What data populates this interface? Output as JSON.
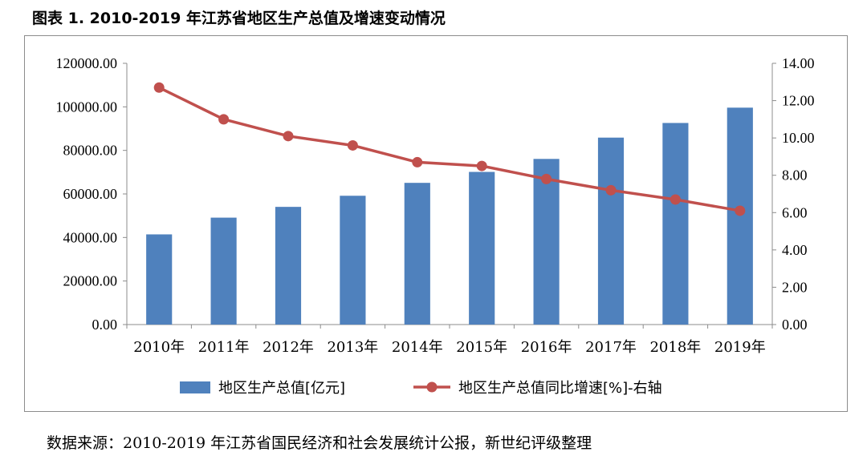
{
  "title": "图表 1. 2010-2019 年江苏省地区生产总值及增速变动情况",
  "source": "数据来源：2010-2019 年江苏省国民经济和社会发展统计公报，新世纪评级整理",
  "colors": {
    "bar": "#4f81bd",
    "line": "#c0504d",
    "axis": "#8c8c8c"
  },
  "chart_data": {
    "type": "bar",
    "categories": [
      "2010年",
      "2011年",
      "2012年",
      "2013年",
      "2014年",
      "2015年",
      "2016年",
      "2017年",
      "2018年",
      "2019年"
    ],
    "series": [
      {
        "name": "地区生产总值[亿元]",
        "type": "bar",
        "axis": "left",
        "values": [
          41425,
          49110,
          54058,
          59162,
          65088,
          70116,
          76086,
          85870,
          92595,
          99632
        ]
      },
      {
        "name": "地区生产总值同比增速[%]-右轴",
        "type": "line",
        "axis": "right",
        "values": [
          12.7,
          11.0,
          10.1,
          9.6,
          8.7,
          8.5,
          7.8,
          7.2,
          6.7,
          6.1
        ]
      }
    ],
    "y_left": {
      "range": [
        0,
        120000
      ],
      "ticks": [
        "0.00",
        "20000.00",
        "40000.00",
        "60000.00",
        "80000.00",
        "100000.00",
        "120000.00"
      ]
    },
    "y_right": {
      "range": [
        0,
        14
      ],
      "ticks": [
        "0.00",
        "2.00",
        "4.00",
        "6.00",
        "8.00",
        "10.00",
        "12.00",
        "14.00"
      ]
    },
    "grid": false,
    "legend": "bottom"
  }
}
